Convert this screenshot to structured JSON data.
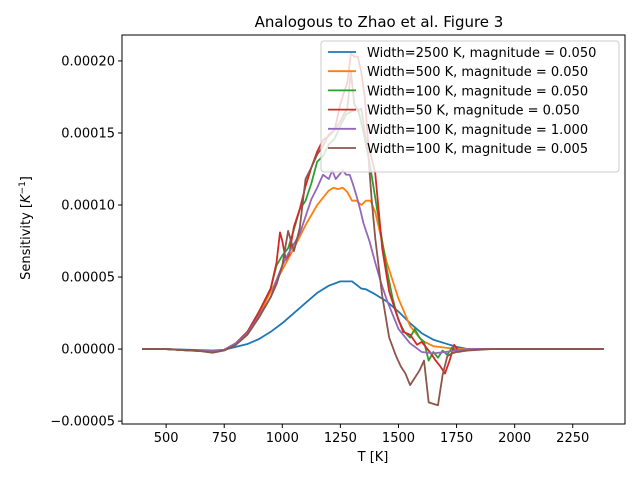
{
  "chart_data": {
    "type": "line",
    "title": "Analogous to Zhao et al. Figure 3",
    "xlabel": "T [K]",
    "ylabel_prefix": "Sensitivity [",
    "ylabel_unit": "K",
    "ylabel_exp": "−1",
    "ylabel_suffix": "]",
    "xlim": [
      310,
      2475
    ],
    "ylim": [
      -5.2e-05,
      0.000218
    ],
    "xticks": [
      500,
      750,
      1000,
      1250,
      1500,
      1750,
      2000,
      2250
    ],
    "xtick_labels": [
      "500",
      "750",
      "1000",
      "1250",
      "1500",
      "1750",
      "2000",
      "2250"
    ],
    "yticks": [
      -5e-05,
      0,
      5e-05,
      0.0001,
      0.00015,
      0.0002
    ],
    "ytick_labels": [
      "−0.00005",
      "0.00000",
      "0.00005",
      "0.00010",
      "0.00015",
      "0.00020"
    ],
    "grid": false,
    "legend_position": "top-right",
    "series": [
      {
        "name": "Width=2500 K, magnitude = 0.050",
        "color": "#1f77b4",
        "x": [
          400,
          500,
          600,
          700,
          750,
          800,
          850,
          900,
          950,
          1000,
          1050,
          1100,
          1150,
          1200,
          1250,
          1300,
          1320,
          1340,
          1360,
          1400,
          1450,
          1500,
          1550,
          1600,
          1650,
          1700,
          1750,
          1800,
          1900,
          2000,
          2100,
          2200,
          2300,
          2380
        ],
        "y": [
          0,
          0,
          -5e-07,
          -1e-06,
          -5e-07,
          1.5e-06,
          3.5e-06,
          7e-06,
          1.2e-05,
          1.8e-05,
          2.5e-05,
          3.2e-05,
          3.9e-05,
          4.4e-05,
          4.7e-05,
          4.7e-05,
          4.45e-05,
          4.2e-05,
          4.15e-05,
          3.8e-05,
          3.3e-05,
          2.6e-05,
          1.8e-05,
          1.1e-05,
          6.5e-06,
          4e-06,
          1.5e-06,
          0,
          0,
          0,
          0,
          0,
          0,
          0
        ]
      },
      {
        "name": "Width=500 K, magnitude = 0.050",
        "color": "#ff7f0e",
        "x": [
          400,
          500,
          600,
          700,
          750,
          800,
          850,
          900,
          950,
          1000,
          1050,
          1100,
          1150,
          1200,
          1220,
          1240,
          1260,
          1280,
          1300,
          1320,
          1340,
          1360,
          1380,
          1400,
          1450,
          1500,
          1550,
          1600,
          1650,
          1700,
          1750,
          1800,
          1900,
          2000,
          2100,
          2200,
          2300,
          2380
        ],
        "y": [
          0,
          0,
          -1e-06,
          -1.5e-06,
          -5e-07,
          4e-06,
          1.2e-05,
          2.4e-05,
          4e-05,
          5.5e-05,
          7e-05,
          8.6e-05,
          0.0001,
          0.00011,
          0.000112,
          0.000111,
          0.000112,
          0.000109,
          0.000103,
          0.000103,
          0.0001,
          0.000103,
          0.000103,
          9.5e-05,
          6e-05,
          3.5e-05,
          1.6e-05,
          6e-06,
          2e-06,
          1e-06,
          0,
          0,
          0,
          0,
          0,
          0,
          0,
          0
        ]
      },
      {
        "name": "Width=100 K, magnitude = 0.050",
        "color": "#2ca02c",
        "x": [
          400,
          500,
          600,
          700,
          750,
          800,
          850,
          900,
          950,
          975,
          1000,
          1025,
          1050,
          1075,
          1100,
          1125,
          1150,
          1175,
          1200,
          1225,
          1250,
          1275,
          1300,
          1325,
          1350,
          1375,
          1400,
          1425,
          1450,
          1475,
          1500,
          1525,
          1550,
          1570,
          1590,
          1610,
          1630,
          1650,
          1670,
          1690,
          1710,
          1730,
          1750,
          1800,
          1900,
          2000,
          2100,
          2200,
          2300,
          2380
        ],
        "y": [
          0,
          0,
          -1e-06,
          -1.5e-06,
          -5e-07,
          4e-06,
          1.2e-05,
          2.6e-05,
          4.2e-05,
          5.8e-05,
          6.5e-05,
          7e-05,
          8.3e-05,
          9.7e-05,
          0.000103,
          0.000115,
          0.00013,
          0.000134,
          0.000142,
          0.000146,
          0.000155,
          0.000163,
          0.000165,
          0.000167,
          0.00015,
          0.00013,
          0.000105,
          8e-05,
          5.5e-05,
          3.5e-05,
          2e-05,
          1.2e-05,
          8e-06,
          1.4e-05,
          8e-06,
          5e-06,
          -8e-06,
          -2e-06,
          -6e-06,
          -1e-06,
          -4e-06,
          1e-06,
          -2e-06,
          0,
          0,
          0,
          0,
          0,
          0,
          0
        ]
      },
      {
        "name": "Width=50 K, magnitude = 0.050",
        "color": "#d62728",
        "x": [
          400,
          500,
          600,
          700,
          750,
          800,
          850,
          900,
          950,
          975,
          990,
          1000,
          1015,
          1030,
          1050,
          1075,
          1100,
          1125,
          1150,
          1175,
          1200,
          1225,
          1250,
          1265,
          1280,
          1295,
          1310,
          1325,
          1340,
          1355,
          1370,
          1400,
          1430,
          1460,
          1490,
          1520,
          1550,
          1580,
          1600,
          1620,
          1640,
          1660,
          1680,
          1700,
          1720,
          1740,
          1760,
          1800,
          1900,
          2000,
          2100,
          2200,
          2300,
          2380
        ],
        "y": [
          0,
          0,
          -1e-06,
          -1.5e-06,
          -5e-07,
          4e-06,
          1.2e-05,
          2.6e-05,
          4.2e-05,
          6e-05,
          8.1e-05,
          7.5e-05,
          6.2e-05,
          6.6e-05,
          8.5e-05,
          9.7e-05,
          0.000113,
          0.000126,
          0.000137,
          0.000145,
          0.000148,
          0.000152,
          0.00017,
          0.000178,
          0.000185,
          0.000205,
          0.000203,
          0.000203,
          0.000192,
          0.000175,
          0.000142,
          0.000122,
          7e-05,
          4e-05,
          2.5e-05,
          1.2e-05,
          1e-05,
          3e-06,
          5e-06,
          1e-06,
          -3e-06,
          -8e-06,
          -1.2e-05,
          -1.7e-05,
          -8e-06,
          3e-06,
          -2e-06,
          0,
          0,
          0,
          0,
          0,
          0,
          0
        ]
      },
      {
        "name": "Width=100 K, magnitude = 1.000",
        "color": "#9467bd",
        "x": [
          400,
          500,
          600,
          700,
          750,
          800,
          850,
          900,
          950,
          975,
          1000,
          1025,
          1050,
          1075,
          1100,
          1125,
          1150,
          1175,
          1200,
          1215,
          1230,
          1245,
          1260,
          1275,
          1290,
          1305,
          1320,
          1335,
          1350,
          1375,
          1400,
          1425,
          1450,
          1475,
          1500,
          1550,
          1600,
          1650,
          1700,
          1750,
          1800,
          1900,
          2000,
          2100,
          2200,
          2300,
          2380
        ],
        "y": [
          0,
          0,
          -1e-06,
          -1.5e-06,
          -5e-07,
          4e-06,
          1.1e-05,
          2.3e-05,
          3.6e-05,
          4.8e-05,
          5.8e-05,
          6.6e-05,
          7.3e-05,
          8e-05,
          9.2e-05,
          0.000104,
          0.000112,
          0.000121,
          0.000118,
          0.000124,
          0.000118,
          0.000121,
          0.000124,
          0.000121,
          0.000121,
          0.000114,
          0.000106,
          9.7e-05,
          8.7e-05,
          7.5e-05,
          6e-05,
          4.6e-05,
          3.4e-05,
          2.4e-05,
          1.4e-05,
          4e-06,
          -2e-06,
          -3e-06,
          -2e-06,
          -1e-06,
          0,
          0,
          0,
          0,
          0,
          0,
          0
        ]
      },
      {
        "name": "Width=100 K, magnitude = 0.005",
        "color": "#8c564b",
        "x": [
          400,
          500,
          600,
          650,
          700,
          750,
          800,
          850,
          900,
          950,
          975,
          1000,
          1025,
          1050,
          1075,
          1100,
          1125,
          1150,
          1175,
          1200,
          1225,
          1250,
          1265,
          1280,
          1295,
          1310,
          1325,
          1340,
          1355,
          1370,
          1385,
          1400,
          1430,
          1460,
          1490,
          1510,
          1530,
          1550,
          1570,
          1590,
          1610,
          1630,
          1650,
          1670,
          1690,
          1710,
          1730,
          1750,
          1800,
          1900,
          2000,
          2100,
          2200,
          2300,
          2380
        ],
        "y": [
          0,
          0,
          -1e-06,
          -1.5e-06,
          -2.5e-06,
          -1e-06,
          3e-06,
          1e-05,
          2.2e-05,
          3.6e-05,
          4.5e-05,
          5.8e-05,
          8.2e-05,
          6.8e-05,
          8.4e-05,
          0.000118,
          0.000126,
          0.000135,
          0.000141,
          0.000149,
          0.000152,
          0.000158,
          0.000163,
          0.000167,
          0.000193,
          0.00017,
          0.000165,
          0.000167,
          0.00015,
          0.000135,
          0.000103,
          7.7e-05,
          3.7e-05,
          8e-06,
          -5e-06,
          -1.2e-05,
          -1.7e-05,
          -2.5e-05,
          -2e-05,
          -1.5e-05,
          -8e-06,
          -3.7e-05,
          -3.8e-05,
          -3.9e-05,
          -1.8e-05,
          -5e-06,
          -3e-06,
          -2e-06,
          -1e-06,
          0,
          0,
          0,
          0,
          0,
          0
        ]
      }
    ]
  }
}
